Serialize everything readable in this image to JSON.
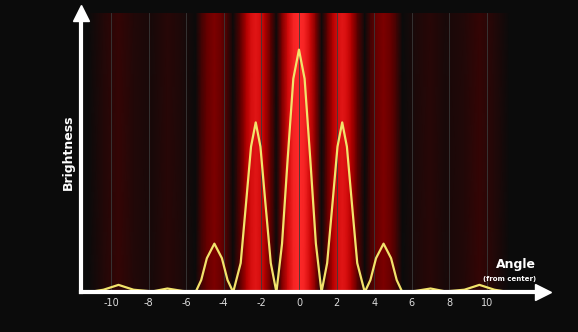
{
  "chart_data": {
    "type": "line",
    "y_label": "Brightness",
    "x_label": "Angle",
    "x_label_note": "(from center)",
    "x": [
      -11.6,
      -11.2,
      -10.4,
      -9.6,
      -8.8,
      -7.8,
      -7.0,
      -6.2,
      -5.5,
      -5.2,
      -4.9,
      -4.5,
      -4.1,
      -3.8,
      -3.5,
      -3.1,
      -2.8,
      -2.55,
      -2.3,
      -2.05,
      -1.8,
      -1.5,
      -1.2,
      -0.9,
      -0.6,
      -0.3,
      0.0,
      0.3,
      0.6,
      0.9,
      1.2,
      1.5,
      1.8,
      2.05,
      2.3,
      2.55,
      2.8,
      3.1,
      3.5,
      3.8,
      4.1,
      4.5,
      4.9,
      5.2,
      5.5,
      6.2,
      7.0,
      7.8,
      8.8,
      9.6,
      10.4,
      11.2,
      13.0
    ],
    "values": [
      0.0,
      0.0,
      0.01,
      0.03,
      0.01,
      0.003,
      0.015,
      0.005,
      0.0,
      0.05,
      0.14,
      0.2,
      0.14,
      0.05,
      0.0,
      0.12,
      0.38,
      0.6,
      0.7,
      0.6,
      0.38,
      0.12,
      0.0,
      0.2,
      0.55,
      0.88,
      1.0,
      0.88,
      0.55,
      0.2,
      0.0,
      0.12,
      0.38,
      0.6,
      0.7,
      0.6,
      0.38,
      0.12,
      0.0,
      0.05,
      0.14,
      0.2,
      0.14,
      0.05,
      0.0,
      0.005,
      0.015,
      0.003,
      0.01,
      0.03,
      0.01,
      0.0,
      0.0
    ],
    "color": "#f2e36b",
    "xlim": [
      -11.6,
      13.0
    ],
    "xticks": [
      -10,
      -8,
      -6,
      -4,
      -2,
      0,
      2,
      4,
      6,
      8,
      10
    ],
    "ylim": [
      0.0,
      1.15
    ],
    "yticks": [],
    "tick_labels": "x",
    "grid": true
  }
}
